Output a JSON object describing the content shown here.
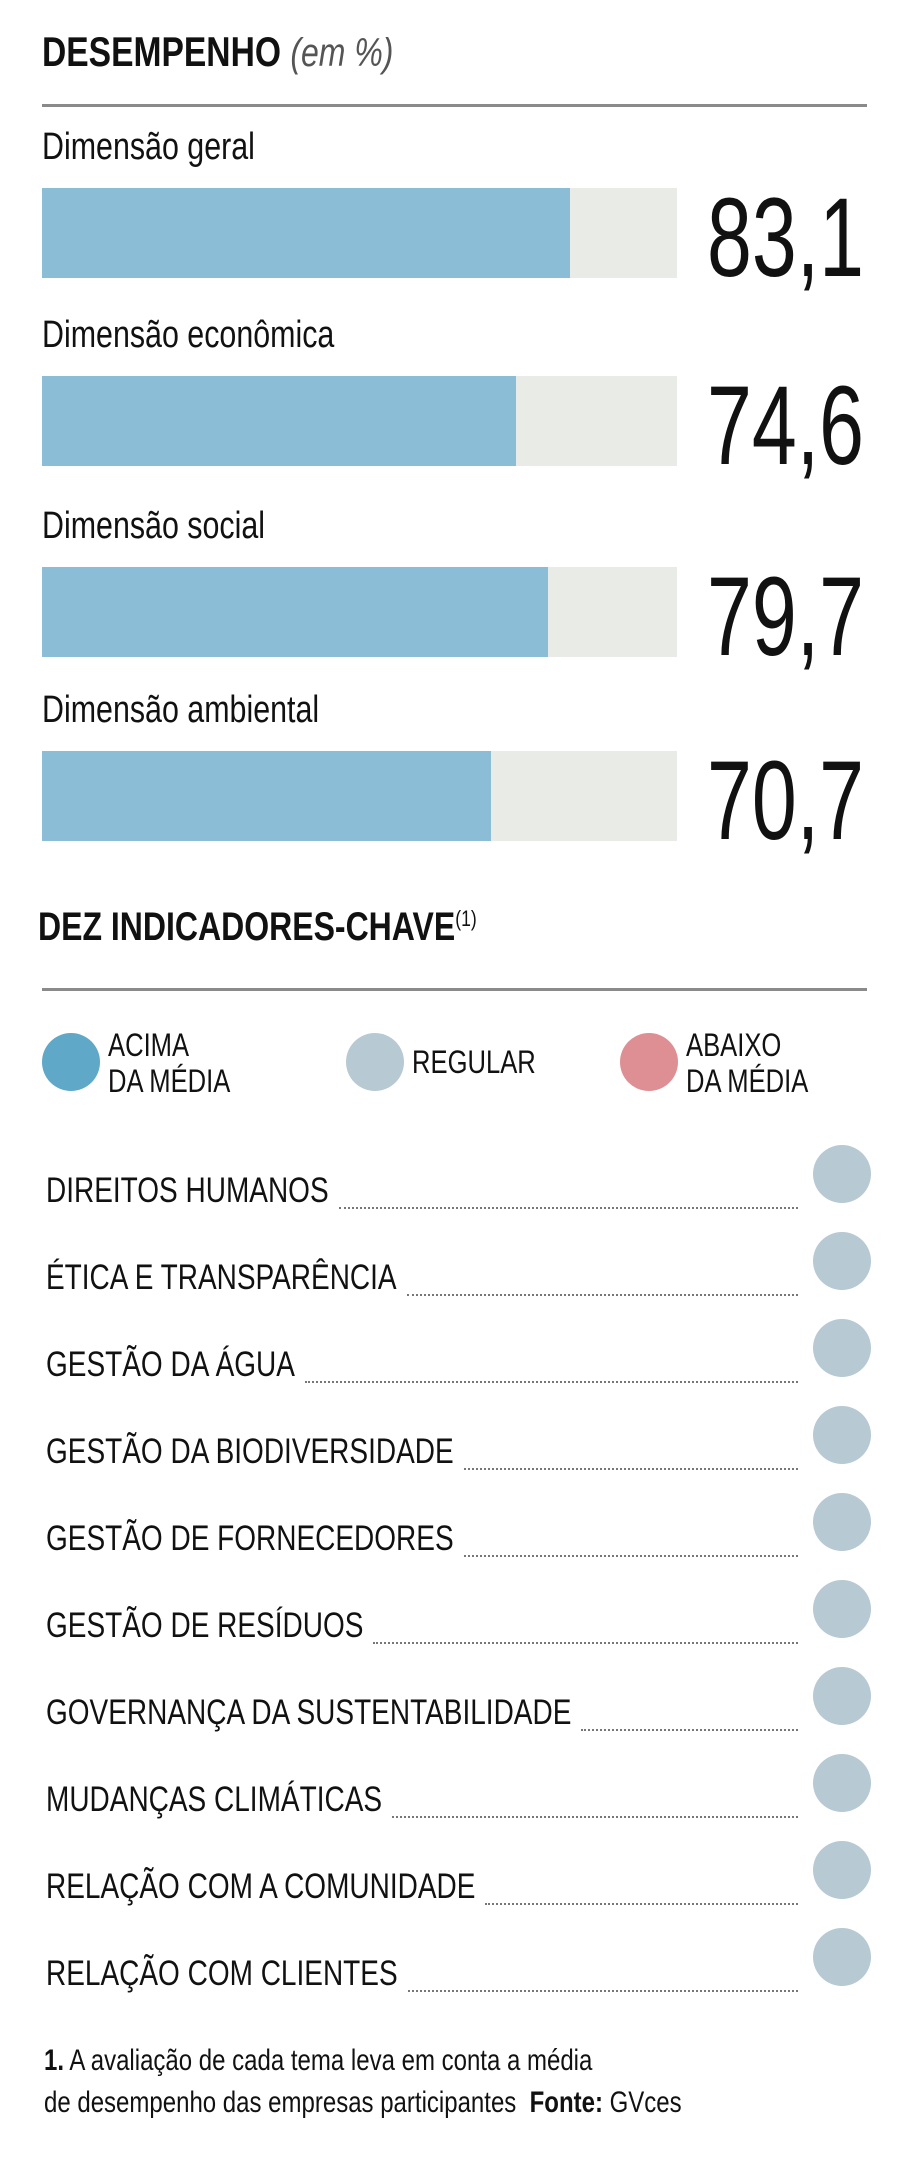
{
  "header": {
    "title": "DESEMPENHO",
    "unit": "(em %)"
  },
  "chart_data": {
    "type": "bar",
    "title": "DESEMPENHO (em %)",
    "categories": [
      "Dimensão geral",
      "Dimensão econômica",
      "Dimensão social",
      "Dimensão ambiental"
    ],
    "values": [
      83.1,
      74.6,
      79.7,
      70.7
    ],
    "value_labels": [
      "83,1",
      "74,6",
      "79,7",
      "70,7"
    ],
    "ylim": [
      0,
      100
    ],
    "colors": {
      "fill": "#8bbdd6",
      "track": "#e9ebe6"
    }
  },
  "indicators": {
    "title": "DEZ INDICADORES-CHAVE",
    "footnote_ref": "(1)",
    "legend": [
      {
        "line1": "ACIMA",
        "line2": "DA MÉDIA",
        "color": "#5fa8c8"
      },
      {
        "line1": "REGULAR",
        "line2": "",
        "color": "#b7c9d3"
      },
      {
        "line1": "ABAIXO",
        "line2": "DA MÉDIA",
        "color": "#de8f94"
      }
    ],
    "items": [
      {
        "label": "DIREITOS HUMANOS",
        "status": "regular"
      },
      {
        "label": "ÉTICA E TRANSPARÊNCIA",
        "status": "regular"
      },
      {
        "label": "GESTÃO DA ÁGUA",
        "status": "regular"
      },
      {
        "label": "GESTÃO DA BIODIVERSIDADE",
        "status": "regular"
      },
      {
        "label": "GESTÃO DE FORNECEDORES",
        "status": "regular"
      },
      {
        "label": "GESTÃO DE RESÍDUOS",
        "status": "regular"
      },
      {
        "label": "GOVERNANÇA DA SUSTENTABILIDADE",
        "status": "regular"
      },
      {
        "label": "MUDANÇAS CLIMÁTICAS",
        "status": "regular"
      },
      {
        "label": "RELAÇÃO COM A COMUNIDADE",
        "status": "regular"
      },
      {
        "label": "RELAÇÃO COM CLIENTES",
        "status": "regular"
      }
    ]
  },
  "footer": {
    "note_num": "1.",
    "note_line1": "A avaliação de cada tema leva em conta a média",
    "note_line2": "de desempenho das empresas participantes",
    "source_label": "Fonte:",
    "source": "GVces"
  }
}
